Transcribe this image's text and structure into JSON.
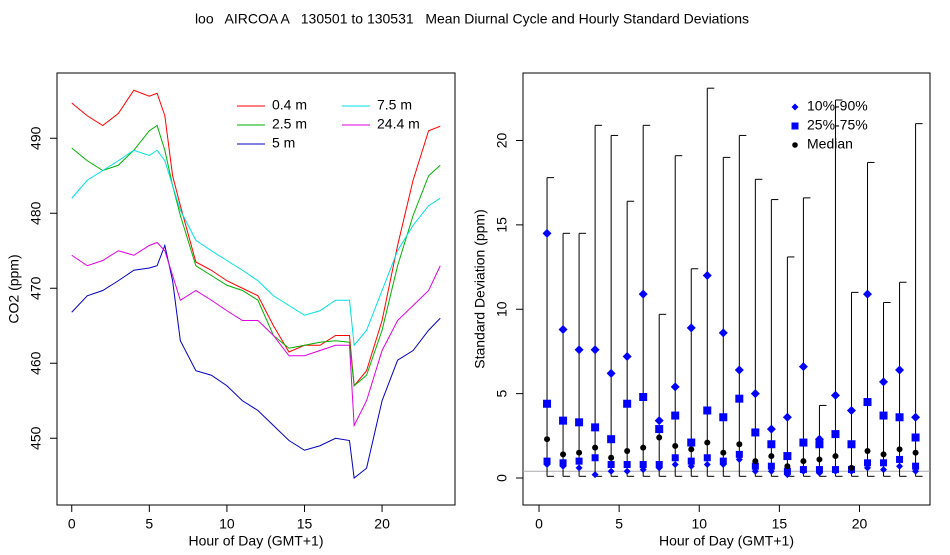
{
  "title": "loo   AIRCOA A   130501 to 130531   Mean Diurnal Cycle and Hourly Standard Deviations",
  "chart_data": [
    {
      "type": "line",
      "xlabel": "Hour of Day (GMT+1)",
      "ylabel": "CO2 (ppm)",
      "xlim": [
        -0.95,
        24.7
      ],
      "ylim": [
        441.1,
        498.7
      ],
      "xticks": [
        0,
        5,
        10,
        15,
        20
      ],
      "yticks": [
        450,
        460,
        470,
        480,
        490
      ],
      "legend": "top-right",
      "x": [
        0,
        1,
        2,
        3,
        4,
        5,
        5.5,
        6,
        6.5,
        7,
        8,
        9,
        10,
        11,
        12,
        13,
        14,
        15,
        16,
        17,
        17.9,
        18.2,
        19,
        20,
        21,
        22,
        23,
        23.75
      ],
      "series": [
        {
          "name": "0.4 m",
          "color": "#ff0000",
          "values": [
            494.7,
            493,
            491.7,
            493.3,
            496.4,
            495.6,
            496,
            493,
            485,
            481,
            473.5,
            472.4,
            471,
            470,
            469,
            465,
            461.5,
            462.4,
            462.4,
            463.7,
            463.7,
            457,
            459,
            465.7,
            475.7,
            484.4,
            491,
            491.6
          ]
        },
        {
          "name": "2.5 m",
          "color": "#00b000",
          "values": [
            488.7,
            487,
            485.7,
            486.4,
            488.4,
            491,
            491.7,
            488.4,
            483.7,
            479.7,
            473,
            471.7,
            470.4,
            469.7,
            468.4,
            463.7,
            462,
            462.4,
            462.8,
            463,
            462.8,
            457,
            458.4,
            464.4,
            473,
            479.7,
            485,
            486.4
          ]
        },
        {
          "name": "5 m",
          "color": "#0000c0",
          "values": [
            466.8,
            469,
            469.7,
            471,
            472.4,
            472.7,
            473,
            475.7,
            471,
            463,
            459,
            458.4,
            457,
            455,
            453.7,
            451.7,
            449.7,
            448.4,
            449,
            450,
            449.7,
            444.7,
            446,
            455,
            460.4,
            461.7,
            464.4,
            466
          ]
        },
        {
          "name": "7.5 m",
          "color": "#00e0e0",
          "values": [
            482,
            484.4,
            485.7,
            487,
            488.4,
            487.7,
            488.4,
            487,
            483.7,
            480.4,
            476.4,
            475,
            473.7,
            472.4,
            471,
            469,
            467.7,
            466.4,
            467,
            468.4,
            468.4,
            462.4,
            464.4,
            469.7,
            475,
            478.4,
            481,
            482
          ]
        },
        {
          "name": "24.4 m",
          "color": "#e000e0",
          "values": [
            474.4,
            473,
            473.7,
            475,
            474.4,
            475.7,
            476.1,
            475,
            471.7,
            468.4,
            469.7,
            468.4,
            467,
            465.7,
            465.7,
            463.7,
            461,
            461,
            461.7,
            462.4,
            462.4,
            451.7,
            455,
            461.7,
            465.7,
            467.7,
            469.7,
            473
          ]
        }
      ]
    },
    {
      "type": "interval",
      "xlabel": "Hour of Day (GMT+1)",
      "ylabel": "Standard Deviation (ppm)",
      "xlim": [
        -1,
        24.4
      ],
      "ylim": [
        -1.6,
        24
      ],
      "xticks": [
        0,
        5,
        10,
        15,
        20
      ],
      "yticks": [
        0,
        5,
        10,
        15,
        20
      ],
      "legend": "top-right",
      "hline": 0.4,
      "hline_color": "#aaaaaa",
      "x": [
        0.5,
        1.5,
        2.5,
        3.5,
        4.5,
        5.5,
        6.5,
        7.5,
        8.5,
        9.5,
        10.5,
        11.5,
        12.5,
        13.5,
        14.5,
        15.5,
        16.5,
        17.5,
        18.5,
        19.5,
        20.5,
        21.5,
        22.5,
        23.5
      ],
      "whisker_color": "#000000",
      "whisker_min": [
        0.1,
        0.1,
        0.1,
        0.1,
        0.1,
        0.1,
        0.1,
        0.1,
        0.1,
        0.1,
        0.1,
        0.1,
        0.1,
        0.1,
        0.1,
        0.1,
        0.1,
        0.1,
        0.1,
        0.1,
        0.1,
        0.1,
        0.1,
        0.1
      ],
      "whisker_max": [
        17.8,
        14.5,
        14.5,
        20.9,
        20.3,
        16.4,
        20.9,
        9.7,
        19.1,
        12.4,
        23.1,
        19.0,
        20.3,
        17.7,
        16.5,
        13.1,
        16.6,
        4.3,
        22.4,
        11.0,
        18.7,
        10.4,
        11.6,
        21.0
      ],
      "series": [
        {
          "name": "10%-90%",
          "color": "#0000ff",
          "marker": "diamond",
          "low": [
            0.8,
            0.7,
            0.6,
            0.2,
            0.4,
            0.4,
            0.5,
            0.6,
            0.8,
            0.7,
            0.8,
            0.8,
            1.1,
            0.4,
            0.4,
            0.2,
            0.4,
            0.3,
            0.4,
            0.4,
            0.6,
            0.5,
            0.7,
            0.4
          ],
          "high": [
            14.5,
            8.8,
            7.6,
            7.6,
            6.2,
            7.2,
            10.9,
            3.4,
            5.4,
            8.9,
            12.0,
            8.6,
            6.4,
            5.0,
            2.9,
            3.6,
            6.6,
            2.3,
            4.9,
            4.0,
            10.9,
            5.7,
            6.4,
            3.6
          ]
        },
        {
          "name": "25%-75%",
          "color": "#0000ff",
          "marker": "square",
          "low": [
            1.0,
            0.9,
            1.0,
            1.2,
            0.8,
            0.8,
            0.8,
            0.8,
            1.2,
            1.0,
            1.2,
            1.0,
            1.4,
            0.7,
            0.7,
            0.4,
            0.5,
            0.5,
            0.5,
            0.5,
            0.9,
            0.9,
            1.1,
            0.7
          ],
          "high": [
            4.4,
            3.4,
            3.3,
            3.0,
            2.3,
            4.4,
            4.8,
            2.9,
            3.7,
            2.1,
            4.0,
            3.6,
            4.7,
            2.7,
            2.0,
            1.3,
            2.1,
            2.0,
            2.6,
            2.0,
            4.5,
            3.7,
            3.6,
            2.4
          ]
        },
        {
          "name": "Median",
          "color": "#000000",
          "marker": "circle",
          "values": [
            2.3,
            1.4,
            1.5,
            1.8,
            1.2,
            1.6,
            1.8,
            2.4,
            1.9,
            1.7,
            2.1,
            1.5,
            2.0,
            1.0,
            1.3,
            0.7,
            1.0,
            1.1,
            1.3,
            0.6,
            1.6,
            1.4,
            1.7,
            1.5
          ]
        }
      ]
    }
  ]
}
